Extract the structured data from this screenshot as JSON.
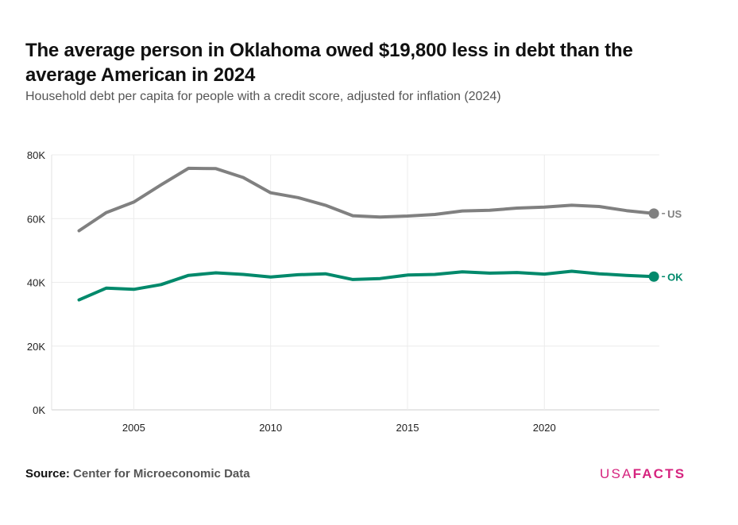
{
  "header": {
    "title": "The average person in Oklahoma owed $19,800 less in debt than the average American in 2024",
    "subtitle": "Household debt per capita for people with a credit score, adjusted for inflation (2024)"
  },
  "footer": {
    "source_label": "Source:",
    "source_value": "Center for Microeconomic Data",
    "logo_part1": "USA",
    "logo_part2": "FACTS"
  },
  "chart_data": {
    "type": "line",
    "title": "The average person in Oklahoma owed $19,800 less in debt than the average American in 2024",
    "subtitle": "Household debt per capita for people with a credit score, adjusted for inflation (2024)",
    "xlabel": "",
    "ylabel": "",
    "xlim": [
      2002,
      2024.2
    ],
    "ylim": [
      0,
      80000
    ],
    "x_ticks": [
      2005,
      2010,
      2015,
      2020
    ],
    "y_ticks": [
      0,
      20000,
      40000,
      60000,
      80000
    ],
    "y_tick_labels": [
      "0K",
      "20K",
      "40K",
      "60K",
      "80K"
    ],
    "grid": true,
    "x": [
      2003,
      2004,
      2005,
      2006,
      2007,
      2008,
      2009,
      2010,
      2011,
      2012,
      2013,
      2014,
      2015,
      2016,
      2017,
      2018,
      2019,
      2020,
      2021,
      2022,
      2023,
      2024
    ],
    "series": [
      {
        "name": "US",
        "color": "#808080",
        "values": [
          56200,
          61900,
          65200,
          70600,
          75800,
          75700,
          72900,
          68100,
          66600,
          64200,
          60900,
          60500,
          60800,
          61300,
          62400,
          62600,
          63300,
          63600,
          64200,
          63800,
          62500,
          61600
        ]
      },
      {
        "name": "OK",
        "color": "#00896b",
        "values": [
          34500,
          38200,
          37800,
          39300,
          42200,
          43000,
          42500,
          41700,
          42400,
          42700,
          40900,
          41200,
          42300,
          42500,
          43300,
          42900,
          43100,
          42600,
          43500,
          42700,
          42200,
          41800
        ]
      }
    ]
  }
}
